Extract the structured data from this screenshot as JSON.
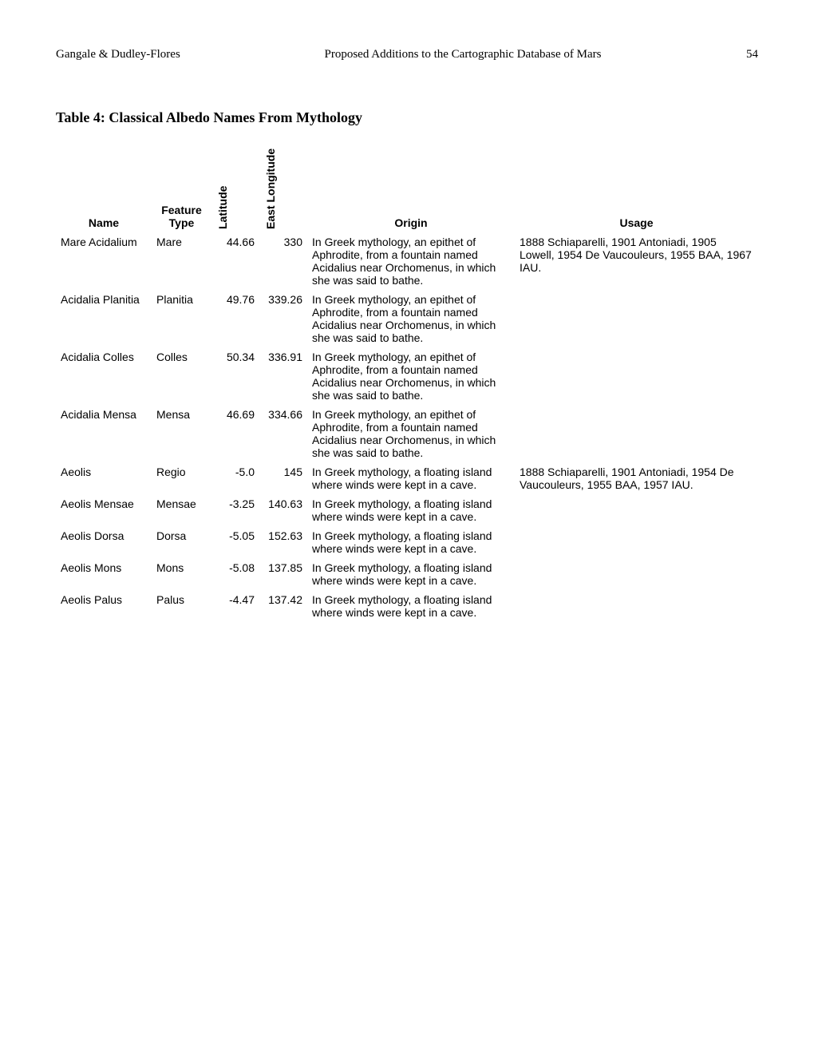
{
  "header": {
    "left": "Gangale & Dudley-Flores",
    "center": "Proposed Additions to the Cartographic Database of Mars",
    "page": "54"
  },
  "table_title": "Table 4:  Classical Albedo Names From Mythology",
  "columns": {
    "name": "Name",
    "feature_type": "Feature Type",
    "latitude": "Latitude",
    "longitude": "East Longitude",
    "origin": "Origin",
    "usage": "Usage"
  },
  "rows": [
    {
      "name": "Mare Acidalium",
      "type": "Mare",
      "lat": "44.66",
      "lon": "330",
      "origin": "In Greek mythology, an epithet of Aphrodite, from a fountain named Acidalius near Orchomenus, in which she was said to bathe.",
      "usage": "1888 Schiaparelli, 1901 Antoniadi, 1905 Lowell, 1954 De Vaucouleurs, 1955 BAA, 1967 IAU."
    },
    {
      "name": "Acidalia Planitia",
      "type": "Planitia",
      "lat": "49.76",
      "lon": "339.26",
      "origin": "In Greek mythology, an epithet of Aphrodite, from a fountain named Acidalius near Orchomenus, in which she was said to bathe.",
      "usage": ""
    },
    {
      "name": "Acidalia Colles",
      "type": "Colles",
      "lat": "50.34",
      "lon": "336.91",
      "origin": "In Greek mythology, an epithet of Aphrodite, from a fountain named Acidalius near Orchomenus, in which she was said to bathe.",
      "usage": ""
    },
    {
      "name": "Acidalia Mensa",
      "type": "Mensa",
      "lat": "46.69",
      "lon": "334.66",
      "origin": "In Greek mythology, an epithet of Aphrodite, from a fountain named Acidalius near Orchomenus, in which she was said to bathe.",
      "usage": ""
    },
    {
      "name": "Aeolis",
      "type": "Regio",
      "lat": "-5.0",
      "lon": "145",
      "origin": "In Greek mythology, a floating island where winds were kept in a cave.",
      "usage": "1888 Schiaparelli, 1901 Antoniadi, 1954 De Vaucouleurs, 1955 BAA, 1957 IAU."
    },
    {
      "name": "Aeolis Mensae",
      "type": "Mensae",
      "lat": "-3.25",
      "lon": "140.63",
      "origin": "In Greek mythology, a floating island where winds were kept in a cave.",
      "usage": ""
    },
    {
      "name": "Aeolis Dorsa",
      "type": "Dorsa",
      "lat": "-5.05",
      "lon": "152.63",
      "origin": "In Greek mythology, a floating island where winds were kept in a cave.",
      "usage": ""
    },
    {
      "name": "Aeolis Mons",
      "type": "Mons",
      "lat": "-5.08",
      "lon": "137.85",
      "origin": "In Greek mythology, a floating island where winds were kept in a cave.",
      "usage": ""
    },
    {
      "name": "Aeolis Palus",
      "type": "Palus",
      "lat": "-4.47",
      "lon": "137.42",
      "origin": "In Greek mythology, a floating island where winds were kept in a cave.",
      "usage": ""
    }
  ]
}
